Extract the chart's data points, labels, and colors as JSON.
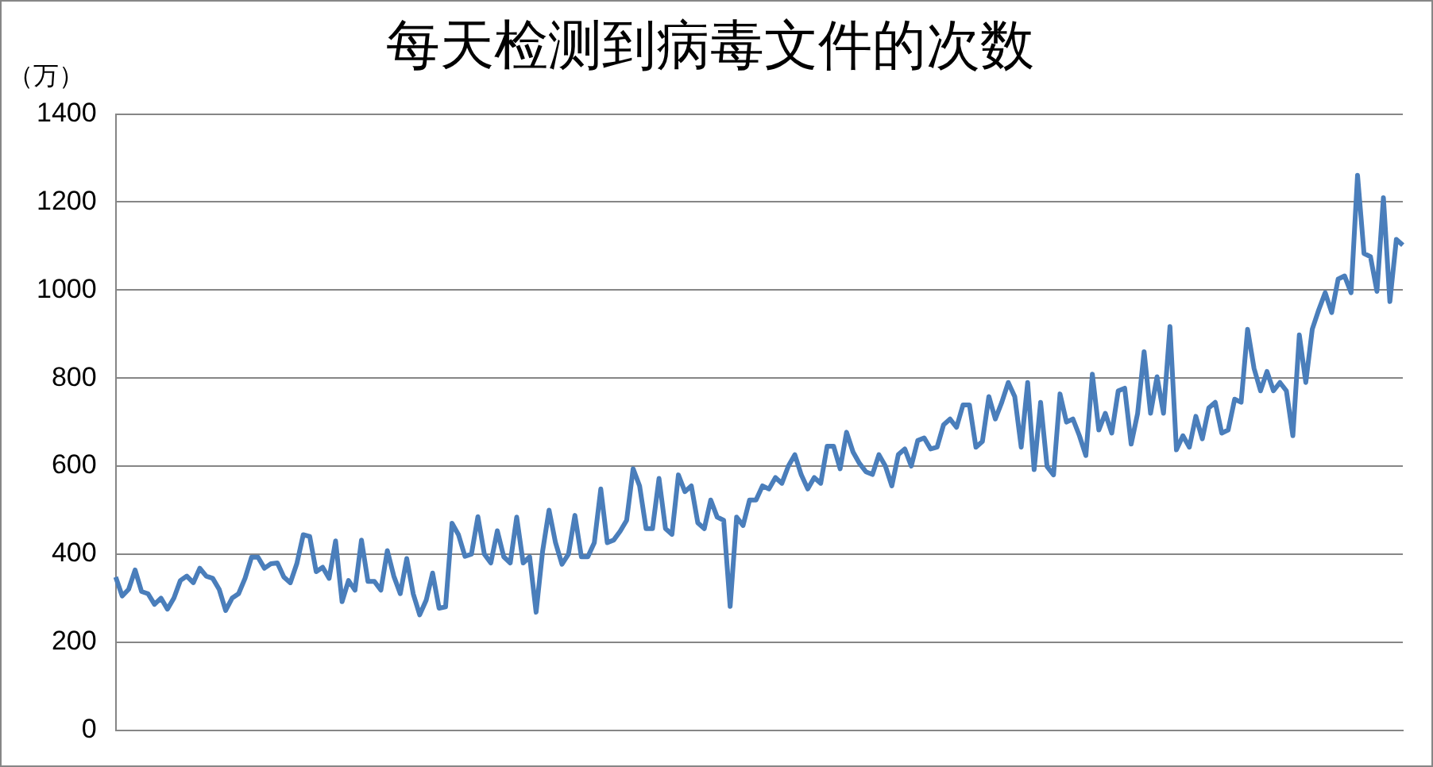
{
  "chart_data": {
    "type": "line",
    "title": "每天检测到病毒文件的次数",
    "ylabel": "（万）",
    "categories": [
      null,
      null,
      null,
      null,
      null,
      null,
      null,
      null,
      null,
      null,
      null,
      null,
      null,
      null,
      null,
      null,
      null,
      null,
      null,
      null,
      null,
      null,
      null,
      null,
      null,
      null,
      null,
      null,
      null,
      null,
      null,
      null,
      null,
      null,
      null,
      null,
      null,
      null,
      null,
      null,
      null,
      null,
      null,
      null,
      null,
      null,
      null,
      null,
      null,
      null,
      null,
      null,
      null,
      null,
      null,
      null,
      null,
      null,
      null,
      null,
      null,
      null,
      null,
      null,
      null,
      null,
      null,
      null,
      null,
      null,
      null,
      null,
      null,
      null,
      null,
      null,
      null,
      null,
      null,
      null,
      null,
      null,
      null,
      null,
      null,
      null,
      null,
      null,
      null,
      null,
      null,
      null,
      null,
      null,
      null,
      null,
      null,
      null,
      null,
      null,
      null,
      null,
      null,
      null,
      null,
      null,
      null,
      null,
      null,
      null,
      null,
      null,
      null,
      null,
      null,
      null,
      null,
      null,
      null,
      null,
      null,
      null,
      null,
      null,
      null,
      null,
      null,
      null,
      null,
      null,
      null,
      null,
      null,
      null,
      null,
      null,
      null,
      null,
      null,
      null,
      null,
      null,
      null,
      null,
      null,
      null,
      null,
      null,
      null,
      null,
      null,
      null,
      null,
      null,
      null,
      null,
      null,
      null,
      null,
      null,
      null,
      null,
      null,
      null,
      null,
      null,
      null,
      null,
      null,
      null,
      null,
      null,
      null,
      null,
      null,
      null,
      null,
      null,
      null,
      null,
      null,
      null,
      null,
      null,
      null,
      null,
      null,
      null,
      null,
      null,
      null,
      null,
      null,
      null,
      null,
      null,
      null,
      null,
      null,
      null
    ],
    "series": [
      {
        "color": "#4a7ebb",
        "values": [
          348,
          305,
          320,
          364,
          315,
          310,
          286,
          300,
          275,
          300,
          340,
          350,
          335,
          368,
          350,
          345,
          320,
          272,
          300,
          310,
          345,
          393,
          393,
          368,
          378,
          380,
          348,
          335,
          378,
          444,
          440,
          360,
          370,
          345,
          430,
          292,
          340,
          318,
          432,
          338,
          338,
          318,
          408,
          350,
          310,
          390,
          310,
          262,
          295,
          357,
          277,
          280,
          470,
          444,
          395,
          400,
          485,
          400,
          380,
          453,
          394,
          380,
          484,
          380,
          394,
          268,
          406,
          500,
          426,
          377,
          400,
          488,
          394,
          394,
          426,
          548,
          426,
          432,
          452,
          477,
          594,
          555,
          458,
          458,
          572,
          458,
          445,
          580,
          542,
          555,
          471,
          458,
          523,
          484,
          477,
          281,
          484,
          465,
          523,
          523,
          555,
          548,
          574,
          561,
          600,
          626,
          580,
          548,
          574,
          561,
          645,
          645,
          594,
          677,
          632,
          606,
          587,
          581,
          626,
          600,
          555,
          626,
          639,
          600,
          658,
          664,
          639,
          643,
          694,
          707,
          688,
          739,
          739,
          643,
          656,
          758,
          707,
          745,
          790,
          758,
          643,
          790,
          592,
          745,
          599,
          580,
          764,
          700,
          707,
          669,
          624,
          809,
          682,
          720,
          675,
          771,
          777,
          650,
          720,
          860,
          720,
          803,
          720,
          917,
          637,
          669,
          643,
          713,
          662,
          732,
          745,
          675,
          682,
          752,
          745,
          911,
          822,
          771,
          815,
          771,
          790,
          771,
          669,
          898,
          790,
          911,
          955,
          994,
          949,
          1025,
          1032,
          994,
          1261,
          1083,
          1076,
          997,
          1210,
          974,
          1115,
          1102
        ]
      }
    ],
    "ylim": [
      0,
      1400
    ],
    "yticks": [
      0,
      200,
      400,
      600,
      800,
      1000,
      1200,
      1400
    ],
    "grid": "y",
    "legend": false,
    "marker": "none",
    "line_style": "solid",
    "tick_labels": "y"
  }
}
